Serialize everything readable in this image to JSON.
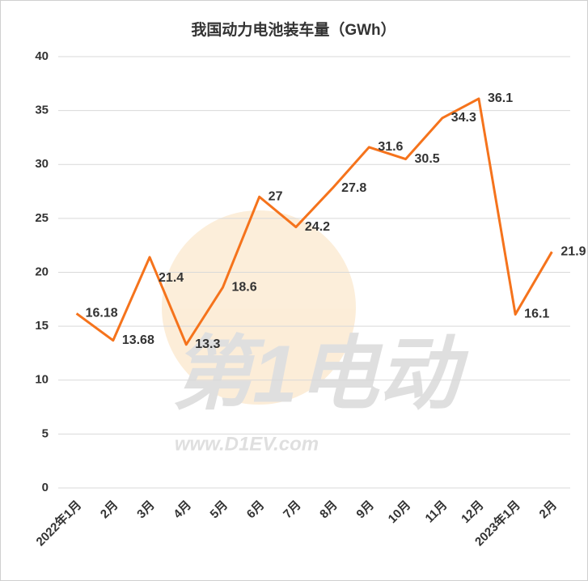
{
  "chart_data": {
    "type": "line",
    "title": "我国动力电池装车量（GWh）",
    "categories": [
      "2022年1月",
      "2月",
      "3月",
      "4月",
      "5月",
      "6月",
      "7月",
      "8月",
      "9月",
      "10月",
      "11月",
      "12月",
      "2023年1月",
      "2月"
    ],
    "series": [
      {
        "name": "动力电池装车量",
        "color": "#f5731c",
        "values": [
          16.18,
          13.68,
          21.4,
          13.3,
          18.6,
          27,
          24.2,
          27.8,
          31.6,
          30.5,
          34.3,
          36.1,
          16.1,
          21.9
        ]
      }
    ],
    "ylim": [
      0,
      40
    ],
    "yticks": [
      0,
      5,
      10,
      15,
      20,
      25,
      30,
      35,
      40
    ],
    "grid": true,
    "watermark": {
      "text": "第1电动",
      "url": "www.D1EV.com"
    }
  }
}
